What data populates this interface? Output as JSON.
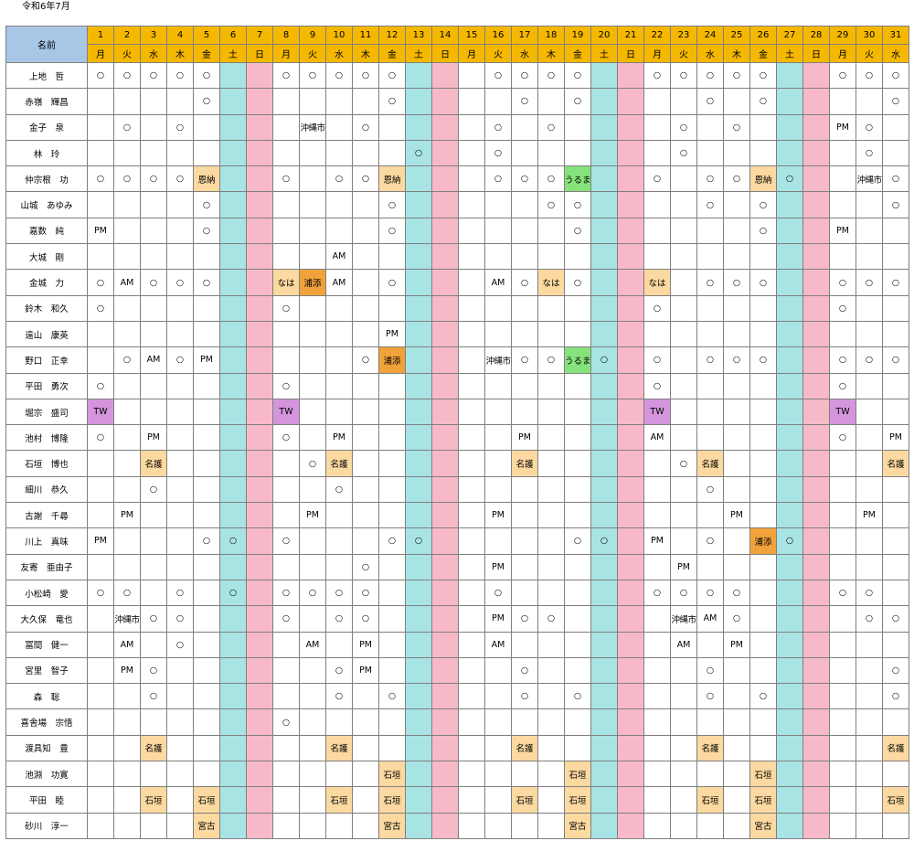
{
  "title": "令和6年7月",
  "name_header": "名前",
  "days": [
    "1",
    "2",
    "3",
    "4",
    "5",
    "6",
    "7",
    "8",
    "9",
    "10",
    "11",
    "12",
    "13",
    "14",
    "15",
    "16",
    "17",
    "18",
    "19",
    "20",
    "21",
    "22",
    "23",
    "24",
    "25",
    "26",
    "27",
    "28",
    "29",
    "30",
    "31"
  ],
  "weekdays": [
    "月",
    "火",
    "水",
    "木",
    "金",
    "土",
    "日",
    "月",
    "火",
    "水",
    "木",
    "金",
    "土",
    "日",
    "月",
    "火",
    "水",
    "木",
    "金",
    "土",
    "日",
    "月",
    "火",
    "水",
    "木",
    "金",
    "土",
    "日",
    "月",
    "火",
    "水"
  ],
  "colors": {
    "header": "#f5b800",
    "name_header": "#a8c6e6",
    "saturday": "#a9e4e4",
    "sunday": "#f7b9c8",
    "tan": "#fbd9a0",
    "orange": "#f2a23a",
    "green": "#86e37c",
    "purple": "#d495dd"
  },
  "legend_styles": {
    "tan": [
      "恩納",
      "名護",
      "石垣",
      "宮古",
      "なは",
      "浦添 (some)"
    ],
    "note": "cells with colored backgrounds"
  },
  "rows": [
    {
      "name": "上地　哲",
      "cells": [
        "○",
        "○",
        "○",
        "○",
        "○",
        "",
        "",
        "○",
        "○",
        "○",
        "○",
        "○",
        "",
        "",
        "",
        "○",
        "○",
        "○",
        "○",
        "",
        "",
        "○",
        "○",
        "○",
        "○",
        "○",
        "",
        "",
        "○",
        "○",
        "○"
      ]
    },
    {
      "name": "赤嶺　輝昌",
      "cells": [
        "",
        "",
        "",
        "",
        "○",
        "",
        "",
        "",
        "",
        "",
        "",
        "○",
        "",
        "",
        "",
        "",
        "○",
        "",
        "○",
        "",
        "",
        "",
        "",
        "○",
        "",
        "○",
        "",
        "",
        "",
        "",
        "○"
      ]
    },
    {
      "name": "金子　泉",
      "cells": [
        "",
        "○",
        "",
        "○",
        "",
        "",
        "",
        "",
        "沖縄市",
        "",
        "○",
        "",
        "",
        "",
        "",
        "○",
        "",
        "○",
        "",
        "",
        "",
        "",
        "○",
        "",
        "○",
        "",
        "",
        "",
        "PM",
        "○",
        ""
      ]
    },
    {
      "name": "林　玲",
      "cells": [
        "",
        "",
        "",
        "",
        "",
        "",
        "",
        "",
        "",
        "",
        "",
        "",
        "○",
        "",
        "",
        "○",
        "",
        "",
        "",
        "",
        "",
        "",
        "○",
        "",
        "",
        "",
        "",
        "",
        "",
        "○",
        ""
      ]
    },
    {
      "name": "仲宗根　功",
      "cells": [
        "○",
        "○",
        "○",
        "○",
        "恩納",
        "",
        "",
        "○",
        "",
        "○",
        "○",
        "恩納",
        "",
        "",
        "",
        "○",
        "○",
        "○",
        "うるま",
        "",
        "",
        "○",
        "",
        "○",
        "○",
        "恩納",
        "○",
        "",
        "",
        "沖縄市",
        "○"
      ]
    },
    {
      "name": "山城　あゆみ",
      "cells": [
        "",
        "",
        "",
        "",
        "○",
        "",
        "",
        "",
        "",
        "",
        "",
        "○",
        "",
        "",
        "",
        "",
        "",
        "○",
        "○",
        "",
        "",
        "",
        "",
        "○",
        "",
        "○",
        "",
        "",
        "",
        "",
        "○"
      ]
    },
    {
      "name": "嘉数　純",
      "cells": [
        "PM",
        "",
        "",
        "",
        "○",
        "",
        "",
        "",
        "",
        "",
        "",
        "○",
        "",
        "",
        "",
        "",
        "",
        "",
        "○",
        "",
        "",
        "",
        "",
        "",
        "",
        "○",
        "",
        "",
        "PM",
        "",
        ""
      ]
    },
    {
      "name": "大城　剛",
      "cells": [
        "",
        "",
        "",
        "",
        "",
        "",
        "",
        "",
        "",
        "AM",
        "",
        "",
        "",
        "",
        "",
        "",
        "",
        "",
        "",
        "",
        "",
        "",
        "",
        "",
        "",
        "",
        "",
        "",
        "",
        "",
        ""
      ]
    },
    {
      "name": "金城　力",
      "cells": [
        "○",
        "AM",
        "○",
        "○",
        "○",
        "",
        "",
        "なは",
        "浦添",
        "AM",
        "",
        "○",
        "",
        "",
        "",
        "AM",
        "○",
        "なは",
        "○",
        "",
        "",
        "なは",
        "",
        "○",
        "○",
        "○",
        "",
        "",
        "○",
        "○",
        "○"
      ]
    },
    {
      "name": "鈴木　和久",
      "cells": [
        "○",
        "",
        "",
        "",
        "",
        "",
        "",
        "○",
        "",
        "",
        "",
        "",
        "",
        "",
        "",
        "",
        "",
        "",
        "",
        "",
        "",
        "○",
        "",
        "",
        "",
        "",
        "",
        "",
        "○",
        "",
        ""
      ]
    },
    {
      "name": "遠山　康英",
      "cells": [
        "",
        "",
        "",
        "",
        "",
        "",
        "",
        "",
        "",
        "",
        "",
        "PM",
        "",
        "",
        "",
        "",
        "",
        "",
        "",
        "",
        "",
        "",
        "",
        "",
        "",
        "",
        "",
        "",
        "",
        "",
        ""
      ]
    },
    {
      "name": "野口　正幸",
      "cells": [
        "",
        "○",
        "AM",
        "○",
        "PM",
        "",
        "",
        "",
        "",
        "",
        "○",
        "浦添",
        "",
        "",
        "",
        "沖縄市",
        "○",
        "○",
        "うるま",
        "○",
        "",
        "○",
        "",
        "○",
        "○",
        "○",
        "",
        "",
        "○",
        "○",
        "○"
      ]
    },
    {
      "name": "平田　勇次",
      "cells": [
        "○",
        "",
        "",
        "",
        "",
        "",
        "",
        "○",
        "",
        "",
        "",
        "",
        "",
        "",
        "",
        "",
        "",
        "",
        "",
        "",
        "",
        "○",
        "",
        "",
        "",
        "",
        "",
        "",
        "○",
        "",
        ""
      ]
    },
    {
      "name": "堀宗　盛司",
      "cells": [
        "TW",
        "",
        "",
        "",
        "",
        "",
        "",
        "TW",
        "",
        "",
        "",
        "",
        "",
        "",
        "",
        "",
        "",
        "",
        "",
        "",
        "",
        "TW",
        "",
        "",
        "",
        "",
        "",
        "",
        "TW",
        "",
        ""
      ]
    },
    {
      "name": "池村　博隆",
      "cells": [
        "○",
        "",
        "PM",
        "",
        "",
        "",
        "",
        "○",
        "",
        "PM",
        "",
        "",
        "",
        "",
        "",
        "",
        "PM",
        "",
        "",
        "",
        "",
        "AM",
        "",
        "",
        "",
        "",
        "",
        "",
        "○",
        "",
        "PM"
      ]
    },
    {
      "name": "石垣　博也",
      "cells": [
        "",
        "",
        "名護",
        "",
        "",
        "",
        "",
        "",
        "○",
        "名護",
        "",
        "",
        "",
        "",
        "",
        "",
        "名護",
        "",
        "",
        "",
        "",
        "",
        "○",
        "名護",
        "",
        "",
        "",
        "",
        "",
        "",
        "名護"
      ]
    },
    {
      "name": "細川　恭久",
      "cells": [
        "",
        "",
        "○",
        "",
        "",
        "",
        "",
        "",
        "",
        "○",
        "",
        "",
        "",
        "",
        "",
        "",
        "",
        "",
        "",
        "",
        "",
        "",
        "",
        "○",
        "",
        "",
        "",
        "",
        "",
        "",
        ""
      ]
    },
    {
      "name": "古謝　千尋",
      "cells": [
        "",
        "PM",
        "",
        "",
        "",
        "",
        "",
        "",
        "PM",
        "",
        "",
        "",
        "",
        "",
        "",
        "PM",
        "",
        "",
        "",
        "",
        "",
        "",
        "",
        "",
        "PM",
        "",
        "",
        "",
        "",
        "PM",
        ""
      ]
    },
    {
      "name": "川上　真味",
      "cells": [
        "PM",
        "",
        "",
        "",
        "○",
        "○",
        "",
        "○",
        "",
        "",
        "",
        "○",
        "○",
        "",
        "",
        "",
        "",
        "",
        "○",
        "○",
        "",
        "PM",
        "",
        "○",
        "",
        "浦添",
        "○",
        "",
        "",
        "",
        ""
      ]
    },
    {
      "name": "友寄　亜由子",
      "cells": [
        "",
        "",
        "",
        "",
        "",
        "",
        "",
        "",
        "",
        "",
        "○",
        "",
        "",
        "",
        "",
        "PM",
        "",
        "",
        "",
        "",
        "",
        "",
        "PM",
        "",
        "",
        "",
        "",
        "",
        "",
        "",
        ""
      ]
    },
    {
      "name": "小松崎　愛",
      "cells": [
        "○",
        "○",
        "",
        "○",
        "",
        "○",
        "",
        "○",
        "○",
        "○",
        "○",
        "",
        "",
        "",
        "",
        "○",
        "",
        "",
        "",
        "",
        "",
        "○",
        "○",
        "○",
        "○",
        "",
        "",
        "",
        "○",
        "○",
        ""
      ]
    },
    {
      "name": "大久保　竜也",
      "cells": [
        "",
        "沖縄市",
        "○",
        "○",
        "",
        "",
        "",
        "○",
        "",
        "○",
        "○",
        "",
        "",
        "",
        "",
        "PM",
        "○",
        "○",
        "",
        "",
        "",
        "",
        "沖縄市",
        "AM",
        "○",
        "",
        "",
        "",
        "",
        "○",
        "○"
      ]
    },
    {
      "name": "冨間　健一",
      "cells": [
        "",
        "AM",
        "",
        "○",
        "",
        "",
        "",
        "",
        "AM",
        "",
        "PM",
        "",
        "",
        "",
        "",
        "AM",
        "",
        "",
        "",
        "",
        "",
        "",
        "AM",
        "",
        "PM",
        "",
        "",
        "",
        "",
        "",
        ""
      ]
    },
    {
      "name": "宮里　智子",
      "cells": [
        "",
        "PM",
        "○",
        "",
        "",
        "",
        "",
        "",
        "",
        "○",
        "PM",
        "",
        "",
        "",
        "",
        "",
        "○",
        "",
        "",
        "",
        "",
        "",
        "",
        "○",
        "",
        "",
        "",
        "",
        "",
        "",
        "○"
      ]
    },
    {
      "name": "森　聡",
      "cells": [
        "",
        "",
        "○",
        "",
        "",
        "",
        "",
        "",
        "",
        "○",
        "",
        "○",
        "",
        "",
        "",
        "",
        "○",
        "",
        "○",
        "",
        "",
        "",
        "",
        "○",
        "",
        "○",
        "",
        "",
        "",
        "",
        "○"
      ]
    },
    {
      "name": "喜舎場　宗悟",
      "cells": [
        "",
        "",
        "",
        "",
        "",
        "",
        "",
        "○",
        "",
        "",
        "",
        "",
        "",
        "",
        "",
        "",
        "",
        "",
        "",
        "",
        "",
        "",
        "",
        "",
        "",
        "",
        "",
        "",
        "",
        "",
        ""
      ]
    },
    {
      "name": "渡具知　豊",
      "cells": [
        "",
        "",
        "名護",
        "",
        "",
        "",
        "",
        "",
        "",
        "名護",
        "",
        "",
        "",
        "",
        "",
        "",
        "名護",
        "",
        "",
        "",
        "",
        "",
        "",
        "名護",
        "",
        "",
        "",
        "",
        "",
        "",
        "名護"
      ]
    },
    {
      "name": "池淵　功寛",
      "cells": [
        "",
        "",
        "",
        "",
        "",
        "",
        "",
        "",
        "",
        "",
        "",
        "石垣",
        "",
        "",
        "",
        "",
        "",
        "",
        "石垣",
        "",
        "",
        "",
        "",
        "",
        "",
        "石垣",
        "",
        "",
        "",
        "",
        ""
      ]
    },
    {
      "name": "平田　睦",
      "cells": [
        "",
        "",
        "石垣",
        "",
        "石垣",
        "",
        "",
        "",
        "",
        "石垣",
        "",
        "石垣",
        "",
        "",
        "",
        "",
        "石垣",
        "",
        "石垣",
        "",
        "",
        "",
        "",
        "石垣",
        "",
        "石垣",
        "",
        "",
        "",
        "",
        "石垣"
      ]
    },
    {
      "name": "砂川　淳一",
      "cells": [
        "",
        "",
        "",
        "",
        "宮古",
        "",
        "",
        "",
        "",
        "",
        "",
        "宮古",
        "",
        "",
        "",
        "",
        "",
        "",
        "宮古",
        "",
        "",
        "",
        "",
        "",
        "",
        "宮古",
        "",
        "",
        "",
        "",
        ""
      ]
    }
  ]
}
